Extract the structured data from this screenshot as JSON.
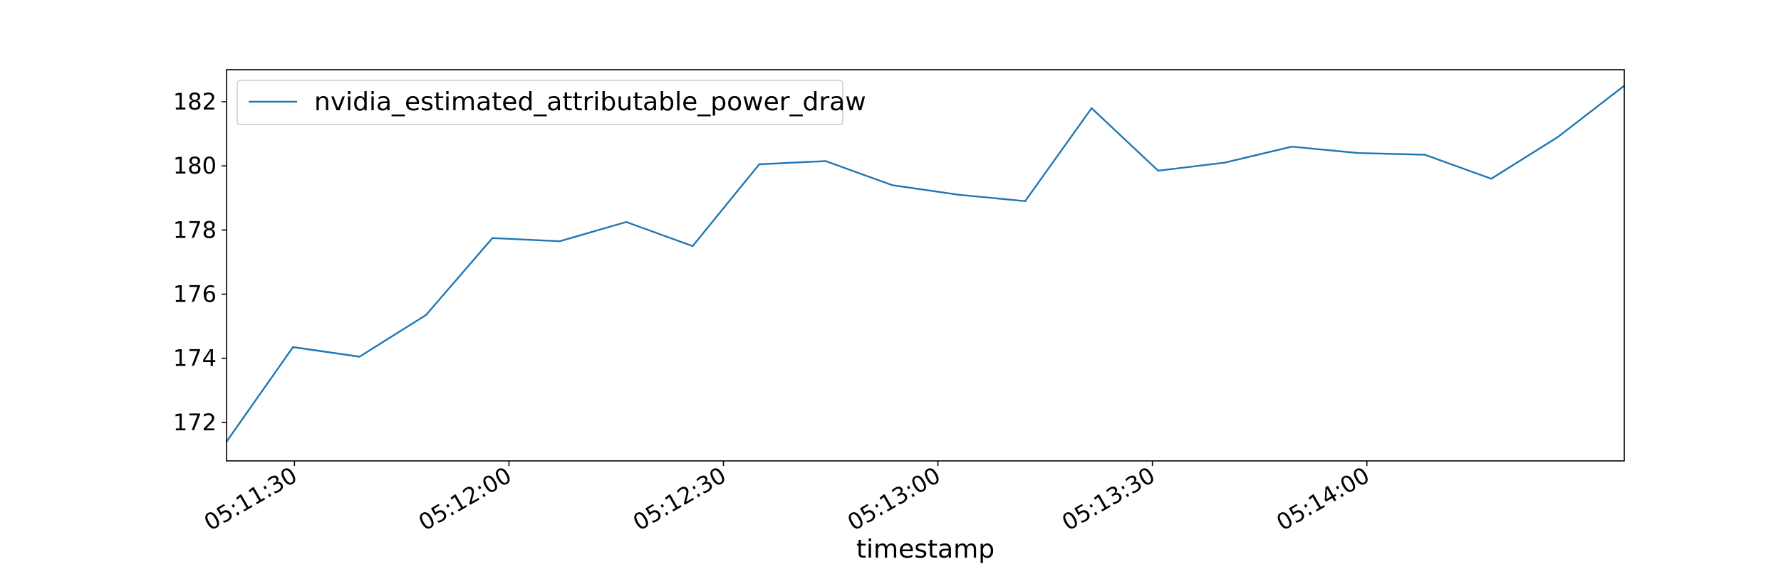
{
  "chart_data": {
    "type": "line",
    "title": "",
    "xlabel": "timestamp",
    "ylabel": "",
    "x_unit": "seconds_since_05:11:00",
    "x": [
      20.5,
      29.8,
      39.1,
      48.4,
      57.7,
      67.1,
      76.4,
      85.7,
      95.0,
      104.3,
      113.6,
      122.9,
      132.2,
      141.5,
      150.8,
      160.1,
      169.5,
      178.8,
      188.1,
      197.4,
      206.7,
      216.0
    ],
    "series": [
      {
        "name": "nvidia_estimated_attributable_power_draw",
        "color": "#1f77b4",
        "values": [
          171.4,
          174.35,
          174.05,
          175.35,
          177.75,
          177.65,
          178.25,
          177.5,
          180.05,
          180.15,
          179.4,
          179.1,
          178.9,
          181.8,
          179.85,
          180.1,
          180.6,
          180.4,
          180.35,
          179.6,
          180.9,
          182.5
        ]
      }
    ],
    "xlim": [
      20.5,
      216.0
    ],
    "ylim": [
      170.8,
      183.0
    ],
    "x_ticks": [
      {
        "value": 30,
        "label": "05:11:30"
      },
      {
        "value": 60,
        "label": "05:12:00"
      },
      {
        "value": 90,
        "label": "05:12:30"
      },
      {
        "value": 120,
        "label": "05:13:00"
      },
      {
        "value": 150,
        "label": "05:13:30"
      },
      {
        "value": 180,
        "label": "05:14:00"
      }
    ],
    "y_ticks": [
      {
        "value": 172,
        "label": "172"
      },
      {
        "value": 174,
        "label": "174"
      },
      {
        "value": 176,
        "label": "176"
      },
      {
        "value": 178,
        "label": "178"
      },
      {
        "value": 180,
        "label": "180"
      },
      {
        "value": 182,
        "label": "182"
      }
    ],
    "grid": false,
    "legend": {
      "position": "top-left",
      "entries": [
        "nvidia_estimated_attributable_power_draw"
      ]
    }
  }
}
